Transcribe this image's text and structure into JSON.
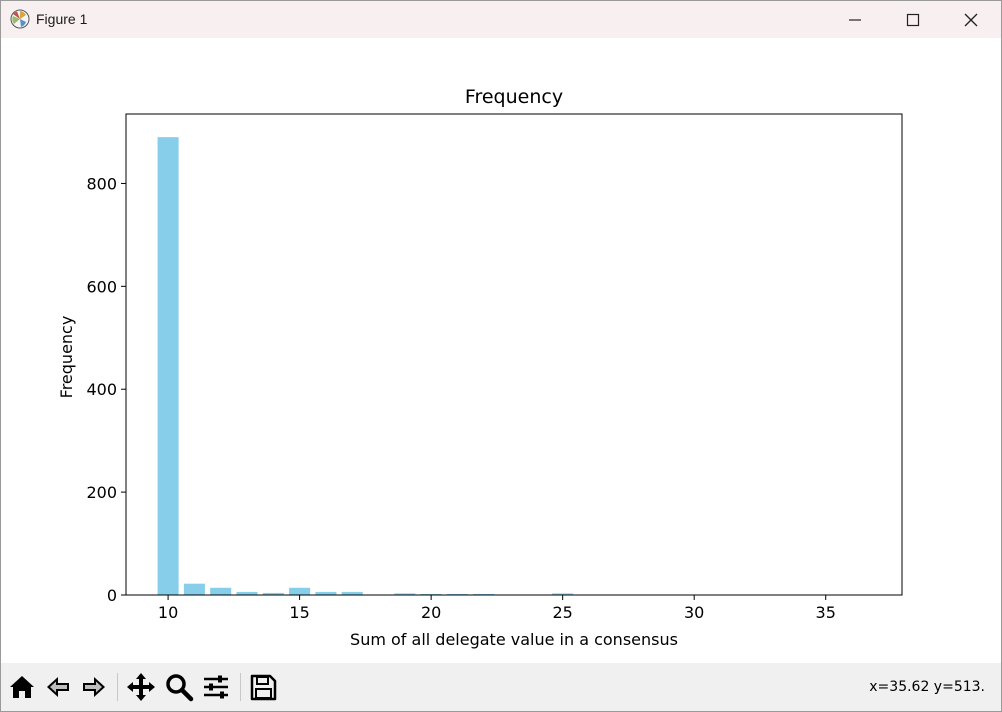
{
  "window": {
    "title": "Figure 1",
    "controls": {
      "minimize": "minimize-icon",
      "maximize": "maximize-icon",
      "close": "close-icon"
    }
  },
  "toolbar": {
    "buttons": [
      {
        "name": "home",
        "icon": "home-icon"
      },
      {
        "name": "back",
        "icon": "back-arrow-icon"
      },
      {
        "name": "forward",
        "icon": "forward-arrow-icon"
      },
      {
        "name": "pan",
        "icon": "move-icon"
      },
      {
        "name": "zoom",
        "icon": "magnifier-icon"
      },
      {
        "name": "configure-subplots",
        "icon": "sliders-icon"
      },
      {
        "name": "save",
        "icon": "floppy-disk-icon"
      }
    ],
    "coordinates": "x=35.62 y=513."
  },
  "chart_data": {
    "type": "bar",
    "title": "Frequency",
    "xlabel": "Sum of all delegate value in a consensus",
    "ylabel": "Frequency",
    "bar_color": "#87ceeb",
    "xlim": [
      8.4,
      37.9
    ],
    "ylim": [
      0,
      935
    ],
    "xticks": [
      10,
      15,
      20,
      25,
      30,
      35
    ],
    "yticks": [
      0,
      200,
      400,
      600,
      800
    ],
    "x": [
      10,
      11,
      12,
      13,
      14,
      15,
      16,
      17,
      19,
      20,
      21,
      22,
      24,
      25,
      29,
      36
    ],
    "values": [
      890,
      22,
      14,
      6,
      4,
      14,
      6,
      6,
      3,
      2,
      2,
      2,
      1,
      3,
      1,
      1
    ]
  }
}
